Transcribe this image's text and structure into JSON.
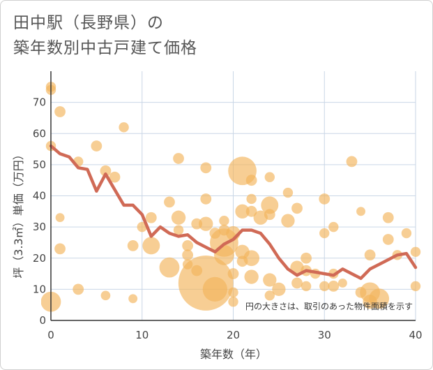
{
  "chart_data": {
    "type": "scatter",
    "title": [
      "田中駅（長野県）の",
      "築年数別中古戸建て価格"
    ],
    "xlabel": "築年数（年）",
    "ylabel": "坪（3.3㎡）単価（万円）",
    "xlim": [
      0,
      40
    ],
    "ylim": [
      0,
      80
    ],
    "xticks": [
      0,
      10,
      20,
      30,
      40
    ],
    "yticks": [
      0,
      10,
      20,
      30,
      40,
      50,
      60,
      70
    ],
    "grid": true,
    "annotation": "円の大きさは、取引のあった物件面積を示す",
    "colors": {
      "bubble": "#f2b45a",
      "line": "#d06a56",
      "grid": "#c9d6e6"
    },
    "scatter": [
      {
        "x": 0,
        "y": 75,
        "size": 1
      },
      {
        "x": 0,
        "y": 74,
        "size": 1
      },
      {
        "x": 0,
        "y": 56,
        "size": 1
      },
      {
        "x": 0,
        "y": 6,
        "size": 4
      },
      {
        "x": 1,
        "y": 67,
        "size": 1.2
      },
      {
        "x": 1,
        "y": 33,
        "size": 0.8
      },
      {
        "x": 1,
        "y": 23,
        "size": 1.2
      },
      {
        "x": 3,
        "y": 51,
        "size": 1
      },
      {
        "x": 3,
        "y": 10,
        "size": 1.2
      },
      {
        "x": 5,
        "y": 56,
        "size": 1.2
      },
      {
        "x": 6,
        "y": 48,
        "size": 1.2
      },
      {
        "x": 6,
        "y": 8,
        "size": 0.9
      },
      {
        "x": 7,
        "y": 46,
        "size": 1.2
      },
      {
        "x": 8,
        "y": 62,
        "size": 1
      },
      {
        "x": 9,
        "y": 24,
        "size": 1.2
      },
      {
        "x": 9,
        "y": 7,
        "size": 0.8
      },
      {
        "x": 10,
        "y": 30,
        "size": 1
      },
      {
        "x": 11,
        "y": 33,
        "size": 1.2
      },
      {
        "x": 11,
        "y": 24,
        "size": 3
      },
      {
        "x": 13,
        "y": 38,
        "size": 1.2
      },
      {
        "x": 13,
        "y": 17,
        "size": 4
      },
      {
        "x": 14,
        "y": 52,
        "size": 1.2
      },
      {
        "x": 14,
        "y": 33,
        "size": 2
      },
      {
        "x": 14,
        "y": 29,
        "size": 1
      },
      {
        "x": 15,
        "y": 24,
        "size": 1.2
      },
      {
        "x": 15,
        "y": 21,
        "size": 1.2
      },
      {
        "x": 15,
        "y": 18,
        "size": 1
      },
      {
        "x": 16,
        "y": 31,
        "size": 1.2
      },
      {
        "x": 16,
        "y": 16,
        "size": 1.2
      },
      {
        "x": 17,
        "y": 49,
        "size": 1.2
      },
      {
        "x": 17,
        "y": 39,
        "size": 1.2
      },
      {
        "x": 17,
        "y": 31,
        "size": 2
      },
      {
        "x": 17,
        "y": 12,
        "size": 30
      },
      {
        "x": 18,
        "y": 28,
        "size": 1.2
      },
      {
        "x": 18,
        "y": 10,
        "size": 6
      },
      {
        "x": 19,
        "y": 32,
        "size": 1
      },
      {
        "x": 19,
        "y": 29,
        "size": 1.2
      },
      {
        "x": 19,
        "y": 25,
        "size": 8
      },
      {
        "x": 19,
        "y": 21,
        "size": 4
      },
      {
        "x": 20,
        "y": 28,
        "size": 2
      },
      {
        "x": 20,
        "y": 15,
        "size": 1.2
      },
      {
        "x": 20,
        "y": 9,
        "size": 1
      },
      {
        "x": 20,
        "y": 6,
        "size": 1
      },
      {
        "x": 21,
        "y": 48,
        "size": 8
      },
      {
        "x": 21,
        "y": 35,
        "size": 2
      },
      {
        "x": 21,
        "y": 22,
        "size": 2
      },
      {
        "x": 21,
        "y": 19,
        "size": 1.2
      },
      {
        "x": 22,
        "y": 45,
        "size": 1.2
      },
      {
        "x": 22,
        "y": 39,
        "size": 1
      },
      {
        "x": 22,
        "y": 35,
        "size": 1.2
      },
      {
        "x": 22,
        "y": 20,
        "size": 2.5
      },
      {
        "x": 22,
        "y": 14,
        "size": 2
      },
      {
        "x": 23,
        "y": 33,
        "size": 2
      },
      {
        "x": 24,
        "y": 46,
        "size": 1
      },
      {
        "x": 24,
        "y": 37,
        "size": 3
      },
      {
        "x": 24,
        "y": 34,
        "size": 1.2
      },
      {
        "x": 24,
        "y": 13,
        "size": 1.8
      },
      {
        "x": 24,
        "y": 8,
        "size": 1
      },
      {
        "x": 25,
        "y": 10,
        "size": 1.8
      },
      {
        "x": 26,
        "y": 41,
        "size": 1
      },
      {
        "x": 26,
        "y": 32,
        "size": 1.8
      },
      {
        "x": 27,
        "y": 36,
        "size": 1.2
      },
      {
        "x": 27,
        "y": 17,
        "size": 1.8
      },
      {
        "x": 27,
        "y": 12,
        "size": 1.2
      },
      {
        "x": 28,
        "y": 20,
        "size": 1.2
      },
      {
        "x": 28,
        "y": 16,
        "size": 1.2
      },
      {
        "x": 28,
        "y": 11,
        "size": 1
      },
      {
        "x": 29,
        "y": 15,
        "size": 1
      },
      {
        "x": 30,
        "y": 39,
        "size": 1.2
      },
      {
        "x": 30,
        "y": 28,
        "size": 1
      },
      {
        "x": 30,
        "y": 11,
        "size": 1
      },
      {
        "x": 31,
        "y": 30,
        "size": 1
      },
      {
        "x": 31,
        "y": 15,
        "size": 1
      },
      {
        "x": 31,
        "y": 11,
        "size": 1.2
      },
      {
        "x": 32,
        "y": 12,
        "size": 0.8
      },
      {
        "x": 33,
        "y": 51,
        "size": 1.2
      },
      {
        "x": 34,
        "y": 35,
        "size": 0.8
      },
      {
        "x": 34,
        "y": 9,
        "size": 1.2
      },
      {
        "x": 35,
        "y": 21,
        "size": 1.2
      },
      {
        "x": 35,
        "y": 9,
        "size": 4
      },
      {
        "x": 35,
        "y": 6,
        "size": 2
      },
      {
        "x": 36,
        "y": 7,
        "size": 4
      },
      {
        "x": 37,
        "y": 33,
        "size": 1.2
      },
      {
        "x": 37,
        "y": 26,
        "size": 1.2
      },
      {
        "x": 38,
        "y": 21,
        "size": 1
      },
      {
        "x": 39,
        "y": 28,
        "size": 1
      },
      {
        "x": 40,
        "y": 22,
        "size": 1
      },
      {
        "x": 40,
        "y": 11,
        "size": 1
      }
    ],
    "line": {
      "x": [
        0,
        1,
        2,
        3,
        4,
        5,
        6,
        7,
        8,
        9,
        10,
        11,
        12,
        13,
        14,
        15,
        16,
        17,
        18,
        19,
        20,
        21,
        22,
        23,
        24,
        25,
        26,
        27,
        28,
        29,
        30,
        31,
        32,
        33,
        34,
        35,
        36,
        37,
        38,
        39,
        40
      ],
      "y": [
        56,
        53.5,
        52.5,
        49,
        48.5,
        41.5,
        47,
        42,
        37,
        37,
        34,
        27,
        30,
        28,
        27,
        27.5,
        25,
        23.5,
        22,
        24.5,
        26,
        29,
        29,
        28,
        24.5,
        20,
        16.5,
        14.5,
        16,
        15.5,
        15,
        14.5,
        16.5,
        15,
        13.5,
        16.5,
        18,
        19.5,
        21,
        21.5,
        17
      ]
    }
  }
}
